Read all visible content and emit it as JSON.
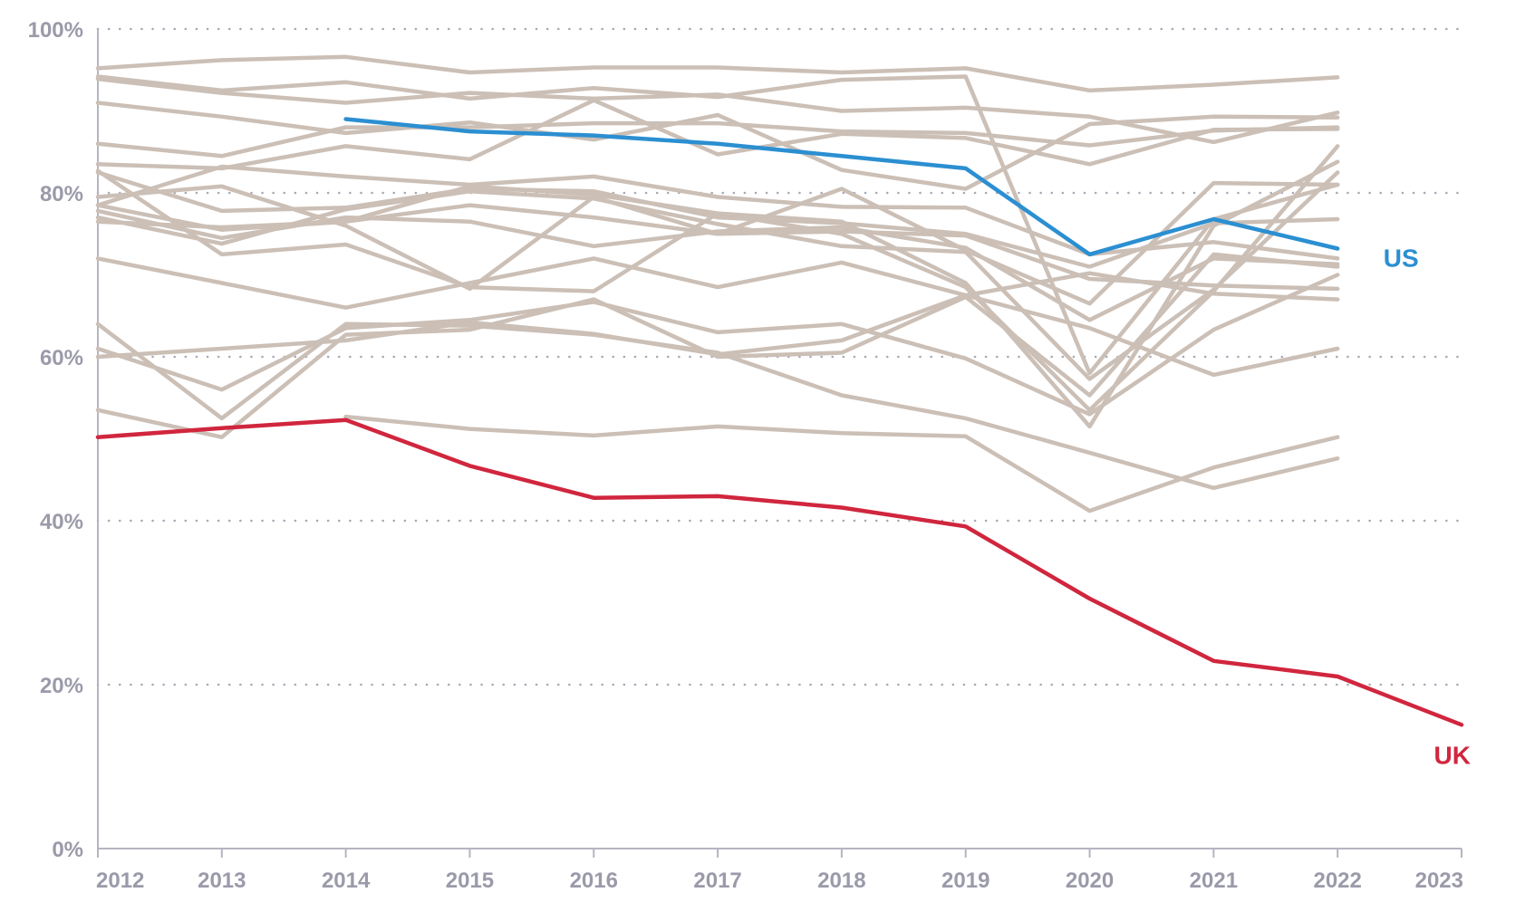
{
  "chart_data": {
    "type": "line",
    "title": "",
    "xlabel": "",
    "ylabel": "",
    "x": [
      "2012",
      "2013",
      "2014",
      "2015",
      "2016",
      "2017",
      "2018",
      "2019",
      "2020",
      "2021",
      "2022",
      "2023"
    ],
    "ylim": [
      0,
      100
    ],
    "y_ticks": [
      "0%",
      "20%",
      "40%",
      "60%",
      "80%",
      "100%"
    ],
    "y_tick_values": [
      0,
      20,
      40,
      60,
      80,
      100
    ],
    "grid": "horizontal-dotted",
    "colors": {
      "background_series": "#cbbfb6",
      "US": "#2b8fd1",
      "UK": "#d0263e",
      "axis": "#b5b5c2",
      "grid": "#a8a8b5"
    },
    "highlight_series": [
      {
        "name": "US",
        "label": "US",
        "color": "#2b8fd1",
        "values": [
          null,
          null,
          89.0,
          87.5,
          87.0,
          86.0,
          84.5,
          83.0,
          72.5,
          76.8,
          73.2,
          null
        ]
      },
      {
        "name": "UK",
        "label": "UK",
        "color": "#d0263e",
        "values": [
          50.2,
          51.3,
          52.3,
          46.7,
          42.8,
          43.0,
          41.6,
          39.3,
          30.5,
          22.9,
          21.0,
          15.1
        ]
      }
    ],
    "background_series": [
      {
        "values": [
          95.2,
          96.2,
          96.6,
          94.7,
          95.3,
          95.3,
          94.7,
          95.2,
          92.5,
          93.2,
          94.1,
          null
        ]
      },
      {
        "values": [
          94.2,
          92.5,
          93.5,
          91.5,
          92.8,
          91.7,
          93.8,
          94.2,
          58.0,
          76.8,
          81.0,
          null
        ]
      },
      {
        "values": [
          93.9,
          92.2,
          91.0,
          92.2,
          91.5,
          92.0,
          90.0,
          90.4,
          89.3,
          86.2,
          89.8,
          null
        ]
      },
      {
        "values": [
          91.0,
          89.3,
          87.3,
          88.6,
          86.5,
          89.5,
          82.8,
          80.5,
          88.4,
          89.3,
          89.2,
          null
        ]
      },
      {
        "values": [
          86.0,
          84.5,
          88.0,
          88.0,
          88.5,
          88.5,
          87.5,
          87.3,
          85.8,
          87.6,
          88.0,
          null
        ]
      },
      {
        "values": [
          83.5,
          83.0,
          85.7,
          84.1,
          91.3,
          84.7,
          87.2,
          86.7,
          83.5,
          87.7,
          87.8,
          null
        ]
      },
      {
        "values": [
          82.5,
          77.8,
          78.2,
          80.5,
          80.2,
          77.0,
          76.3,
          75.0,
          71.0,
          76.3,
          76.8,
          null
        ]
      },
      {
        "values": [
          78.5,
          83.2,
          82.0,
          81.0,
          82.0,
          79.5,
          78.3,
          78.2,
          72.5,
          74.0,
          72.0,
          null
        ]
      },
      {
        "values": [
          77.8,
          74.5,
          77.0,
          76.5,
          73.5,
          75.3,
          75.8,
          73.3,
          64.5,
          72.0,
          71.3,
          null
        ]
      },
      {
        "values": [
          77.0,
          73.8,
          78.0,
          80.2,
          79.3,
          76.2,
          73.5,
          72.8,
          57.3,
          68.2,
          82.5,
          null
        ]
      },
      {
        "values": [
          76.5,
          75.8,
          76.5,
          80.8,
          79.8,
          77.5,
          75.0,
          68.5,
          53.5,
          68.0,
          85.7,
          null
        ]
      },
      {
        "values": [
          82.7,
          72.5,
          73.7,
          68.5,
          68.0,
          77.5,
          76.5,
          69.0,
          51.5,
          76.0,
          83.8,
          null
        ]
      },
      {
        "values": [
          79.5,
          80.8,
          76.0,
          68.3,
          79.5,
          75.0,
          80.5,
          73.0,
          66.5,
          81.2,
          81.0,
          null
        ]
      },
      {
        "values": [
          78.5,
          75.5,
          76.5,
          78.5,
          77.0,
          75.0,
          75.3,
          74.8,
          69.5,
          68.7,
          68.3,
          null
        ]
      },
      {
        "values": [
          72.0,
          69.0,
          66.0,
          69.0,
          72.0,
          68.5,
          71.5,
          67.5,
          63.5,
          57.8,
          61.0,
          null
        ]
      },
      {
        "values": [
          64.0,
          52.5,
          64.0,
          63.8,
          62.7,
          60.5,
          55.3,
          52.5,
          48.3,
          44.0,
          47.6,
          null
        ]
      },
      {
        "values": [
          61.0,
          56.0,
          63.5,
          64.5,
          66.7,
          63.0,
          64.0,
          59.8,
          53.0,
          63.3,
          70.0,
          null
        ]
      },
      {
        "values": [
          60.0,
          61.0,
          62.0,
          64.2,
          62.8,
          60.3,
          62.0,
          67.5,
          70.2,
          67.7,
          67.0,
          null
        ]
      },
      {
        "values": [
          53.5,
          50.2,
          62.7,
          63.3,
          67.0,
          60.0,
          60.5,
          67.3,
          55.3,
          72.5,
          71.0,
          null
        ]
      },
      {
        "values": [
          null,
          null,
          52.7,
          51.2,
          50.4,
          51.5,
          50.7,
          50.3,
          41.2,
          46.5,
          50.2,
          null
        ]
      }
    ]
  }
}
